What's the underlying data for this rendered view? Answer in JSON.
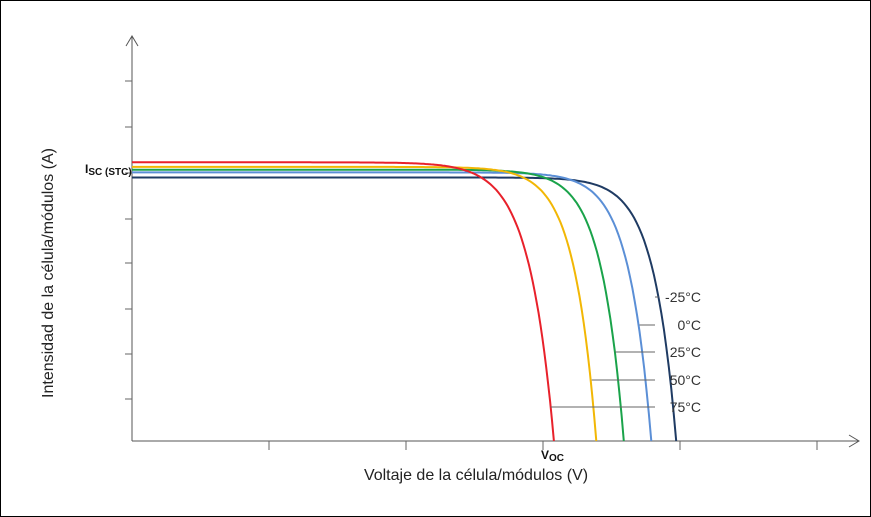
{
  "chart_data": {
    "type": "line",
    "title": "",
    "xlabel": "Voltaje de la célula/módulos (V)",
    "ylabel": "Intensidad de la célula/módulos (A)",
    "y_marker_label": "I",
    "y_marker_sub": "SC (STC)",
    "x_marker_label": "V",
    "x_marker_sub": "OC",
    "grid": false,
    "legend_placement": "right (leader lines to curves)",
    "series": [
      {
        "name": "-25°C",
        "color": "#1f3b63",
        "isc": 5.75,
        "voc": 10.9,
        "knee_v": 9.5,
        "knee_width": 0.45
      },
      {
        "name": "0°C",
        "color": "#5b8fd6",
        "isc": 5.86,
        "voc": 10.4,
        "knee_v": 8.95,
        "knee_width": 0.45
      },
      {
        "name": "25°C",
        "color": "#1aa34a",
        "isc": 5.92,
        "voc": 9.85,
        "knee_v": 8.4,
        "knee_width": 0.45
      },
      {
        "name": "50°C",
        "color": "#f2b705",
        "isc": 5.98,
        "voc": 9.3,
        "knee_v": 7.85,
        "knee_width": 0.45
      },
      {
        "name": "75°C",
        "color": "#e8212b",
        "isc": 6.08,
        "voc": 8.45,
        "knee_v": 6.95,
        "knee_width": 0.5
      }
    ]
  }
}
